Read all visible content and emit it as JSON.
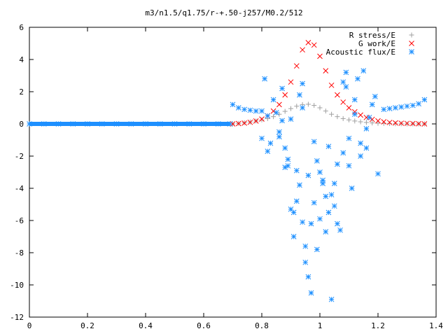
{
  "chart_data": {
    "type": "scatter",
    "title": "m3/n1.5/q1.75/r-+.50-j257/M0.2/512",
    "xlabel": "",
    "ylabel": "",
    "xlim": [
      0,
      1.4
    ],
    "ylim": [
      -12,
      6
    ],
    "x_ticks": [
      "0",
      "0.2",
      "0.4",
      "0.6",
      "0.8",
      "1",
      "1.2",
      "1.4"
    ],
    "y_ticks": [
      "6",
      "4",
      "2",
      "0",
      "-2",
      "-4",
      "-6",
      "-8",
      "-10",
      "-12"
    ],
    "grid": false,
    "legend_position": "top-right",
    "series": [
      {
        "name": "R stress/E",
        "marker": "+",
        "color": "#a0a0a0",
        "x": [
          0.7,
          0.72,
          0.74,
          0.76,
          0.78,
          0.8,
          0.82,
          0.84,
          0.86,
          0.88,
          0.9,
          0.92,
          0.94,
          0.96,
          0.98,
          1.0,
          1.02,
          1.04,
          1.06,
          1.08,
          1.1,
          1.12,
          1.14,
          1.16,
          1.18,
          1.2,
          1.22,
          1.24,
          1.26,
          1.28,
          1.3,
          1.32,
          1.34,
          1.36
        ],
        "y": [
          0.0,
          0.03,
          0.07,
          0.12,
          0.18,
          0.25,
          0.33,
          0.45,
          0.6,
          0.78,
          0.95,
          1.1,
          1.2,
          1.22,
          1.15,
          1.0,
          0.8,
          0.6,
          0.45,
          0.33,
          0.25,
          0.18,
          0.13,
          0.09,
          0.06,
          0.04,
          0.03,
          0.02,
          0.01,
          0.01,
          0.0,
          0.0,
          0.0,
          0.0
        ]
      },
      {
        "name": "G work/E",
        "marker": "x",
        "color": "#ff0000",
        "x": [
          0.7,
          0.72,
          0.74,
          0.76,
          0.78,
          0.8,
          0.82,
          0.84,
          0.86,
          0.88,
          0.9,
          0.92,
          0.94,
          0.96,
          0.98,
          1.0,
          1.02,
          1.04,
          1.06,
          1.08,
          1.1,
          1.12,
          1.14,
          1.16,
          1.18,
          1.2,
          1.22,
          1.24,
          1.26,
          1.28,
          1.3,
          1.32,
          1.34,
          1.36
        ],
        "y": [
          0.0,
          0.02,
          0.05,
          0.1,
          0.18,
          0.3,
          0.5,
          0.8,
          1.2,
          1.8,
          2.6,
          3.6,
          4.6,
          5.05,
          4.9,
          4.2,
          3.3,
          2.4,
          1.8,
          1.35,
          1.0,
          0.75,
          0.55,
          0.4,
          0.28,
          0.19,
          0.13,
          0.09,
          0.06,
          0.04,
          0.03,
          0.02,
          0.01,
          0.0
        ]
      },
      {
        "name": "Acoustic flux/E",
        "marker": "*",
        "color": "#1e90ff",
        "x": [
          0.0,
          0.05,
          0.1,
          0.15,
          0.2,
          0.25,
          0.3,
          0.35,
          0.4,
          0.45,
          0.5,
          0.55,
          0.6,
          0.65,
          0.69,
          0.7,
          0.72,
          0.74,
          0.76,
          0.78,
          0.8,
          0.81,
          0.82,
          0.83,
          0.84,
          0.85,
          0.86,
          0.87,
          0.88,
          0.89,
          0.9,
          0.9,
          0.91,
          0.92,
          0.93,
          0.94,
          0.94,
          0.95,
          0.96,
          0.97,
          0.98,
          0.99,
          1.0,
          1.01,
          1.02,
          1.03,
          1.04,
          1.05,
          1.06,
          1.07,
          1.08,
          1.09,
          1.1,
          1.11,
          1.12,
          1.13,
          1.14,
          1.15,
          1.16,
          1.17,
          1.18,
          1.19,
          1.2,
          1.22,
          1.24,
          1.26,
          1.28,
          1.3,
          1.32,
          1.34,
          1.36,
          0.86,
          0.88,
          0.92,
          0.96,
          1.04,
          1.1,
          1.14,
          0.93,
          0.98,
          1.02,
          1.06,
          0.95,
          0.97,
          1.0,
          0.99,
          0.91,
          0.89,
          1.08,
          1.12,
          1.16,
          0.82,
          0.8,
          0.87,
          0.94,
          1.01,
          1.03,
          1.05,
          1.09
        ],
        "y": [
          0.0,
          0.0,
          0.0,
          0.0,
          0.0,
          0.0,
          0.0,
          0.0,
          0.0,
          0.0,
          0.0,
          0.0,
          0.0,
          0.0,
          0.0,
          1.2,
          1.0,
          0.9,
          0.85,
          0.8,
          0.8,
          2.8,
          0.5,
          -1.2,
          1.5,
          0.7,
          -0.5,
          2.2,
          -1.5,
          -2.2,
          0.3,
          -5.3,
          -7.0,
          -2.9,
          -3.8,
          1.0,
          -6.1,
          -8.6,
          -9.5,
          -10.5,
          -4.9,
          -7.8,
          -5.9,
          -3.5,
          -6.7,
          -1.4,
          -10.9,
          -3.7,
          -2.5,
          -6.6,
          -1.8,
          2.3,
          -2.6,
          -4.0,
          0.6,
          2.8,
          -1.2,
          3.3,
          -0.3,
          0.4,
          1.2,
          1.7,
          -3.1,
          0.9,
          0.95,
          1.0,
          1.05,
          1.1,
          1.15,
          1.25,
          1.5,
          -0.8,
          -2.7,
          -4.8,
          -3.2,
          -4.4,
          -0.9,
          -2.0,
          1.8,
          -1.1,
          -4.5,
          -6.2,
          -7.6,
          -6.2,
          -3.0,
          -2.3,
          -5.5,
          -2.6,
          2.6,
          1.5,
          -1.5,
          -1.7,
          -0.9,
          0.2,
          2.5,
          -3.7,
          -5.5,
          -5.1,
          3.2
        ]
      }
    ]
  }
}
